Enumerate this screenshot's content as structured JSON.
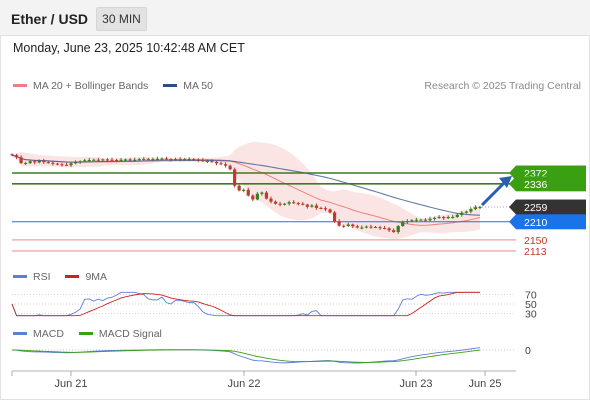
{
  "header": {
    "instrument": "Ether / USD",
    "timeframe": "30 MIN",
    "datetime": "Monday, June 23, 2025 10:42:48 AM CET"
  },
  "price_legend": {
    "bollinger_label": "MA 20 + Bollinger Bands",
    "ma50_label": "MA 50",
    "credit": "Research © 2025 Trading Central"
  },
  "rsi_legend": {
    "rsi_label": "RSI",
    "ma_label": "9MA"
  },
  "macd_legend": {
    "macd_label": "MACD",
    "signal_label": "MACD Signal"
  },
  "colors": {
    "bullish": "#3a7d20",
    "bearish": "#c0392b",
    "target_green": "#3aa012",
    "support_red": "#f0a0a0",
    "pivot_blue": "#1a73e8",
    "current_dark": "#333333",
    "ma50": "#2c4f8c",
    "bollinger": "#f7c4c4",
    "rsi": "#5a7fd6",
    "rsi_ma": "#d02020",
    "macd": "#5a7fd6",
    "signal": "#3aa012",
    "arrow": "#2a5fb0"
  },
  "chart_data": {
    "type": "candlestick",
    "x_ticks": [
      "Jun 21",
      "Jun 22",
      "Jun 23",
      "Jun 25"
    ],
    "levels": [
      {
        "value": 2372,
        "label": "2372",
        "kind": "resistance"
      },
      {
        "value": 2336,
        "label": "2336",
        "kind": "resistance"
      },
      {
        "value": 2259,
        "label": "2259",
        "kind": "last"
      },
      {
        "value": 2210,
        "label": "2210",
        "kind": "pivot"
      },
      {
        "value": 2150,
        "label": "2150",
        "kind": "support"
      },
      {
        "value": 2113,
        "label": "2113",
        "kind": "support"
      }
    ],
    "price_range": [
      2110,
      2395
    ],
    "price_closes": [
      2431,
      2424,
      2405,
      2405,
      2411,
      2407,
      2412,
      2408,
      2406,
      2403,
      2401,
      2399,
      2398,
      2404,
      2408,
      2411,
      2414,
      2415,
      2416,
      2415,
      2417,
      2416,
      2415,
      2414,
      2416,
      2417,
      2415,
      2416,
      2418,
      2419,
      2418,
      2418,
      2419,
      2420,
      2418,
      2416,
      2418,
      2417,
      2418,
      2418,
      2416,
      2414,
      2412,
      2411,
      2409,
      2404,
      2401,
      2396,
      2384,
      2330,
      2314,
      2316,
      2297,
      2284,
      2303,
      2307,
      2287,
      2277,
      2270,
      2267,
      2270,
      2275,
      2272,
      2270,
      2267,
      2260,
      2264,
      2256,
      2255,
      2251,
      2241,
      2212,
      2197,
      2196,
      2201,
      2195,
      2191,
      2191,
      2194,
      2193,
      2192,
      2189,
      2188,
      2182,
      2176,
      2196,
      2209,
      2212,
      2215,
      2217,
      2217,
      2215,
      2220,
      2223,
      2226,
      2222,
      2226,
      2226,
      2233,
      2240,
      2244,
      2252,
      2258,
      2259
    ],
    "rsi": {
      "levels": [
        70,
        50,
        30
      ],
      "tick_labels": [
        "70",
        "50",
        "30"
      ]
    },
    "macd": {
      "zero_label": "0"
    }
  }
}
